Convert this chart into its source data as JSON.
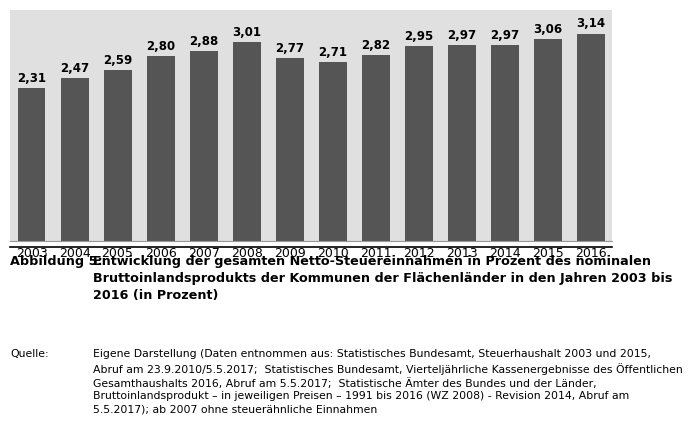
{
  "years": [
    "2003",
    "2004",
    "2005",
    "2006",
    "2007",
    "2008",
    "2009",
    "2010",
    "2011",
    "2012",
    "2013",
    "2014",
    "2015",
    "2016"
  ],
  "values": [
    2.31,
    2.47,
    2.59,
    2.8,
    2.88,
    3.01,
    2.77,
    2.71,
    2.82,
    2.95,
    2.97,
    2.97,
    3.06,
    3.14
  ],
  "bar_color": "#555555",
  "background_color": "#e0e0e0",
  "text_color": "#000000",
  "bar_label_fontsize": 8.5,
  "tick_fontsize": 9,
  "caption_bold": "Abbildung 5:",
  "caption_text": "Entwicklung der gesamten Netto-Steuereinnahmen in Prozent des nominalen\nBruttoinlandsprodukts der Kommunen der Flächenländer in den Jahren 2003 bis\n2016 (in Prozent)",
  "source_bold": "Quelle:",
  "source_text": "Eigene Darstellung (Daten entnommen aus: Statistisches Bundesamt, Steuerhaushalt 2003 und 2015,\nAbruf am 23.9.2010/5.5.2017;  Statistisches Bundesamt, Vierteljährliche Kassenergebnisse des Öffentlichen\nGesamthaushalts 2016, Abruf am 5.5.2017;  Statistische Ämter des Bundes und der Länder,\nBruttoinlandsprodukt – in jeweiligen Preisen – 1991 bis 2016 (WZ 2008) - Revision 2014, Abruf am\n5.5.2017); ab 2007 ohne steuerähnliche Einnahmen",
  "ylim": [
    0,
    3.5
  ],
  "caption_fontsize": 9.2,
  "source_fontsize": 7.8
}
